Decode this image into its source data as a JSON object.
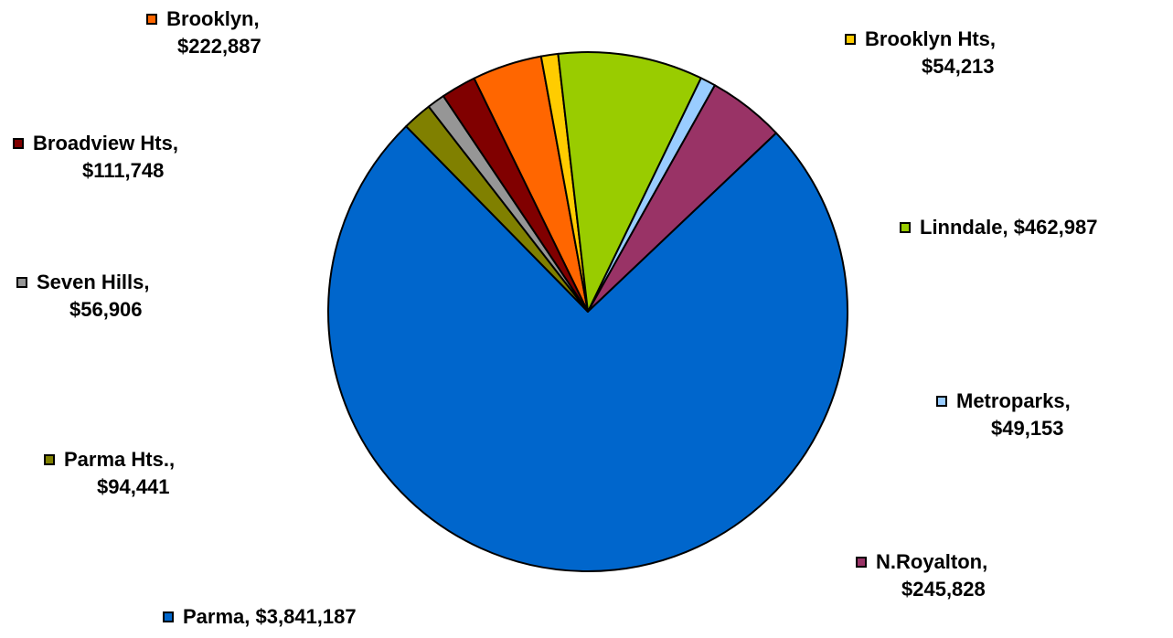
{
  "chart_data": {
    "type": "pie",
    "title": "",
    "start_angle_deg": -26.0,
    "direction": "clockwise",
    "slices": [
      {
        "name": "Brooklyn",
        "value": 222887,
        "value_label": "$222,887",
        "color": "#ff6600"
      },
      {
        "name": "Brooklyn Hts",
        "value": 54213,
        "value_label": "$54,213",
        "color": "#ffcc00"
      },
      {
        "name": "Linndale",
        "value": 462987,
        "value_label": "$462,987",
        "color": "#99cc00"
      },
      {
        "name": "Metroparks",
        "value": 49153,
        "value_label": "$49,153",
        "color": "#99ccff"
      },
      {
        "name": "N.Royalton",
        "value": 245828,
        "value_label": "$245,828",
        "color": "#993366"
      },
      {
        "name": "Parma",
        "value": 3841187,
        "value_label": "$3,841,187",
        "color": "#0066cc"
      },
      {
        "name": "Parma Hts.",
        "value": 94441,
        "value_label": "$94,441",
        "color": "#808000"
      },
      {
        "name": "Seven Hills",
        "value": 56906,
        "value_label": "$56,906",
        "color": "#969696"
      },
      {
        "name": "Broadview Hts",
        "value": 111748,
        "value_label": "$111,748",
        "color": "#800000"
      }
    ]
  }
}
